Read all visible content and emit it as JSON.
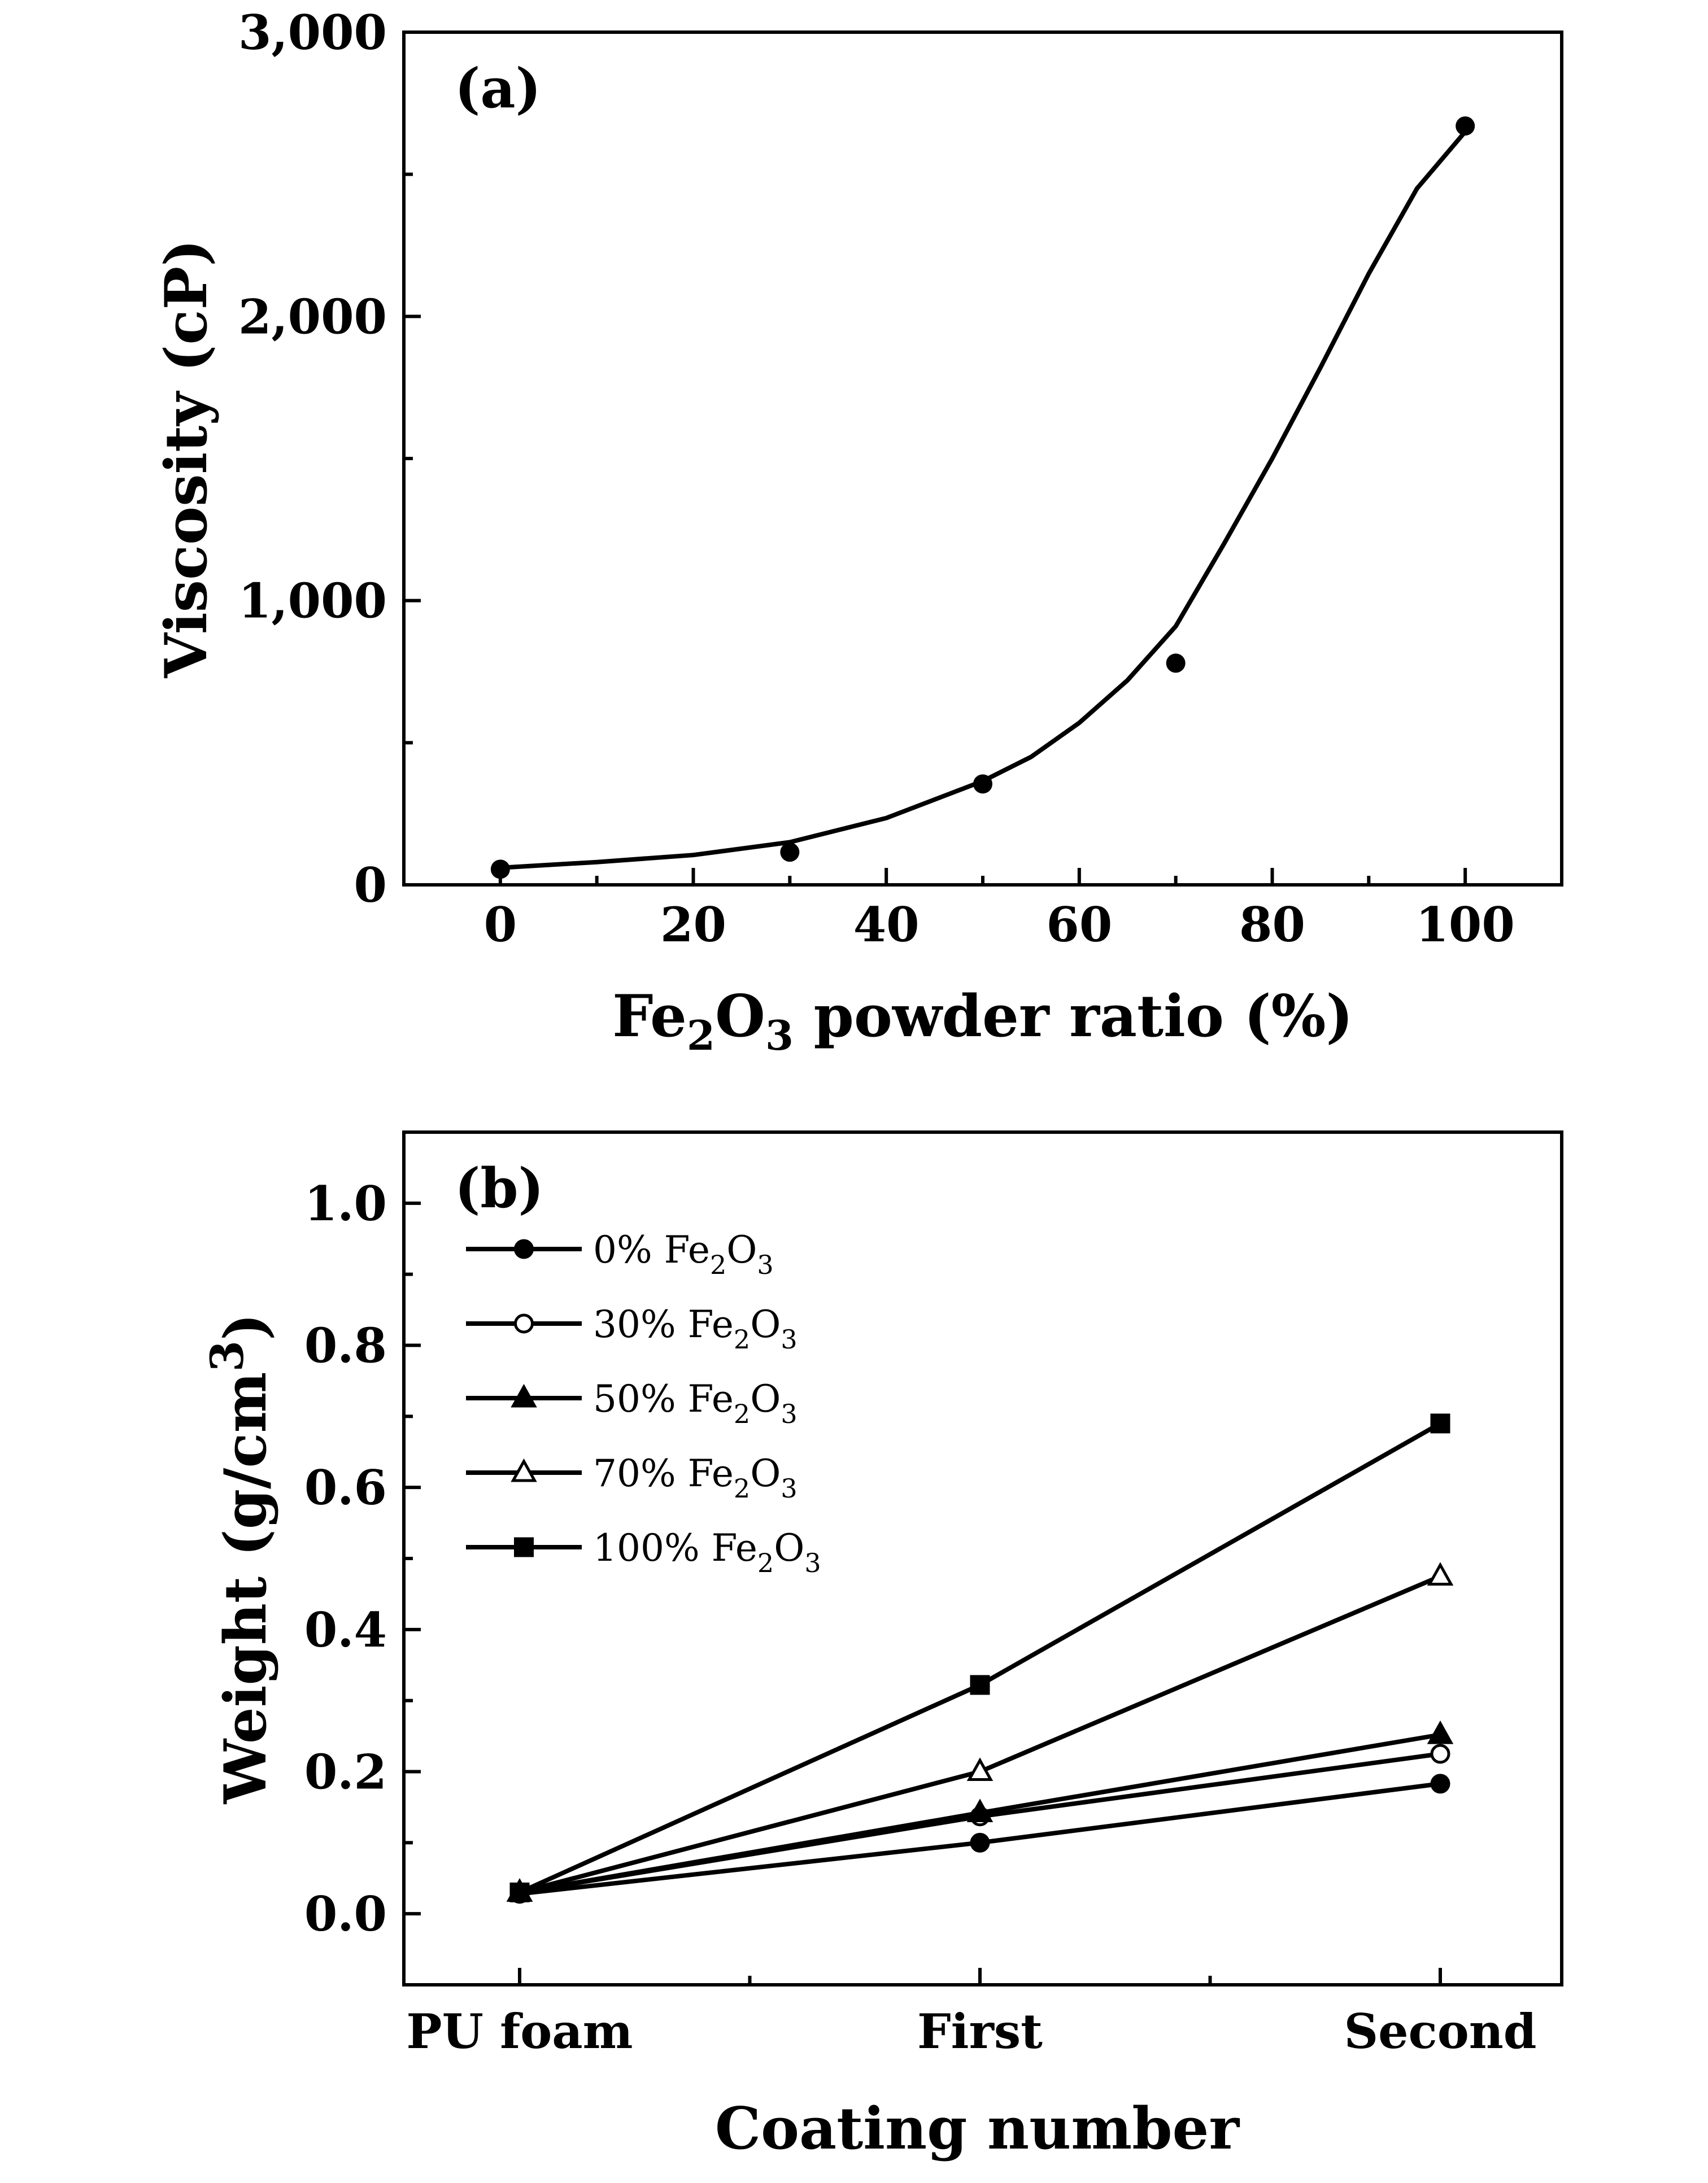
{
  "chart_data": [
    {
      "type": "scatter",
      "panel_label": "(a)",
      "ylabel": "Viscosity (cP)",
      "xlabel_parts": {
        "pre": "Fe",
        "sub1": "2",
        "mid": "O",
        "sub2": "3",
        "post": " powder ratio (%)"
      },
      "xlim": [
        -10,
        110
      ],
      "ylim": [
        0,
        3000
      ],
      "x_ticks": [
        0,
        20,
        40,
        60,
        80,
        100
      ],
      "x_tick_labels": [
        "0",
        "20",
        "40",
        "60",
        "80",
        "100"
      ],
      "y_ticks": [
        0,
        1000,
        2000,
        3000
      ],
      "y_tick_labels": [
        "0",
        "1,000",
        "2,000",
        "3,000"
      ],
      "points": {
        "x": [
          0,
          30,
          50,
          70,
          100
        ],
        "y": [
          55,
          115,
          355,
          780,
          2670
        ]
      },
      "fit_curve": {
        "x": [
          0,
          10,
          20,
          30,
          40,
          50,
          55,
          60,
          65,
          70,
          75,
          80,
          85,
          90,
          95,
          100
        ],
        "y": [
          60,
          80,
          105,
          150,
          235,
          365,
          450,
          570,
          720,
          910,
          1200,
          1500,
          1820,
          2150,
          2450,
          2650
        ]
      }
    },
    {
      "type": "line",
      "panel_label": "(b)",
      "ylabel_parts": {
        "pre": "Weight (g/cm",
        "sup": "3",
        "post": ")"
      },
      "xlabel": "Coating number",
      "categories": [
        "PU foam",
        "First",
        "Second"
      ],
      "ylim": [
        -0.1,
        1.1
      ],
      "y_ticks": [
        0.0,
        0.2,
        0.4,
        0.6,
        0.8,
        1.0
      ],
      "y_tick_labels": [
        "0.0",
        "0.2",
        "0.4",
        "0.6",
        "0.8",
        "1.0"
      ],
      "series": [
        {
          "name": "0% Fe2O3",
          "label_parts": {
            "pre": "  0% Fe",
            "sub1": "2",
            "mid": "O",
            "sub2": "3"
          },
          "marker": "filled-circle",
          "values": [
            0.028,
            0.1,
            0.183
          ]
        },
        {
          "name": "30% Fe2O3",
          "label_parts": {
            "pre": "30% Fe",
            "sub1": "2",
            "mid": "O",
            "sub2": "3"
          },
          "marker": "open-circle",
          "values": [
            0.03,
            0.137,
            0.225
          ]
        },
        {
          "name": "50% Fe2O3",
          "label_parts": {
            "pre": "50% Fe",
            "sub1": "2",
            "mid": "O",
            "sub2": "3"
          },
          "marker": "filled-triangle",
          "values": [
            0.03,
            0.142,
            0.252
          ]
        },
        {
          "name": "70% Fe2O3",
          "label_parts": {
            "pre": "70% Fe",
            "sub1": "2",
            "mid": "O",
            "sub2": "3"
          },
          "marker": "open-triangle",
          "values": [
            0.03,
            0.2,
            0.475
          ]
        },
        {
          "name": "100% Fe2O3",
          "label_parts": {
            "pre": "100% Fe",
            "sub1": "2",
            "mid": "O",
            "sub2": "3"
          },
          "marker": "filled-square",
          "values": [
            0.03,
            0.322,
            0.69
          ]
        }
      ],
      "legend_position": "top-left"
    }
  ]
}
